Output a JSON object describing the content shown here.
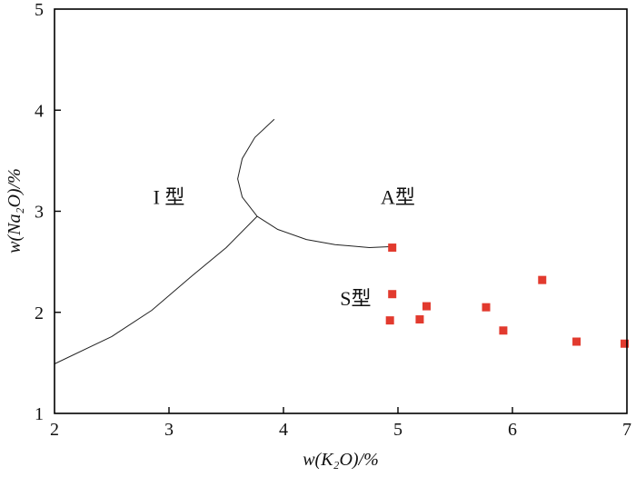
{
  "chart_data": {
    "type": "scatter",
    "xlabel": "w(K₂O)/%",
    "ylabel": "w(Na₂O)/%",
    "xlim": [
      2,
      7
    ],
    "ylim": [
      1,
      5
    ],
    "x_ticks": [
      "2",
      "3",
      "4",
      "5",
      "6",
      "7"
    ],
    "y_ticks": [
      "1",
      "2",
      "3",
      "4",
      "5"
    ],
    "grid": false,
    "marker_color": "#e23a2e",
    "points": [
      {
        "x": 4.95,
        "y": 2.64
      },
      {
        "x": 4.95,
        "y": 2.18
      },
      {
        "x": 4.93,
        "y": 1.92
      },
      {
        "x": 5.19,
        "y": 1.93
      },
      {
        "x": 5.25,
        "y": 2.06
      },
      {
        "x": 5.77,
        "y": 2.05
      },
      {
        "x": 5.92,
        "y": 1.82
      },
      {
        "x": 6.26,
        "y": 2.32
      },
      {
        "x": 6.56,
        "y": 1.71
      },
      {
        "x": 6.98,
        "y": 1.69
      }
    ],
    "boundaries": [
      [
        [
          2.0,
          1.49
        ],
        [
          2.5,
          1.76
        ],
        [
          2.85,
          2.02
        ],
        [
          3.2,
          2.36
        ],
        [
          3.5,
          2.64
        ],
        [
          3.77,
          2.95
        ]
      ],
      [
        [
          3.77,
          2.95
        ],
        [
          3.64,
          3.14
        ],
        [
          3.6,
          3.32
        ],
        [
          3.64,
          3.52
        ],
        [
          3.75,
          3.73
        ],
        [
          3.92,
          3.91
        ]
      ],
      [
        [
          3.77,
          2.95
        ],
        [
          3.95,
          2.82
        ],
        [
          4.2,
          2.72
        ],
        [
          4.45,
          2.67
        ],
        [
          4.75,
          2.64
        ],
        [
          4.95,
          2.65
        ]
      ]
    ],
    "region_labels": [
      {
        "text": "I 型",
        "x": 3.0,
        "y": 3.07
      },
      {
        "text": "A型",
        "x": 5.0,
        "y": 3.07
      },
      {
        "text": "S型",
        "x": 4.63,
        "y": 2.07
      }
    ]
  }
}
